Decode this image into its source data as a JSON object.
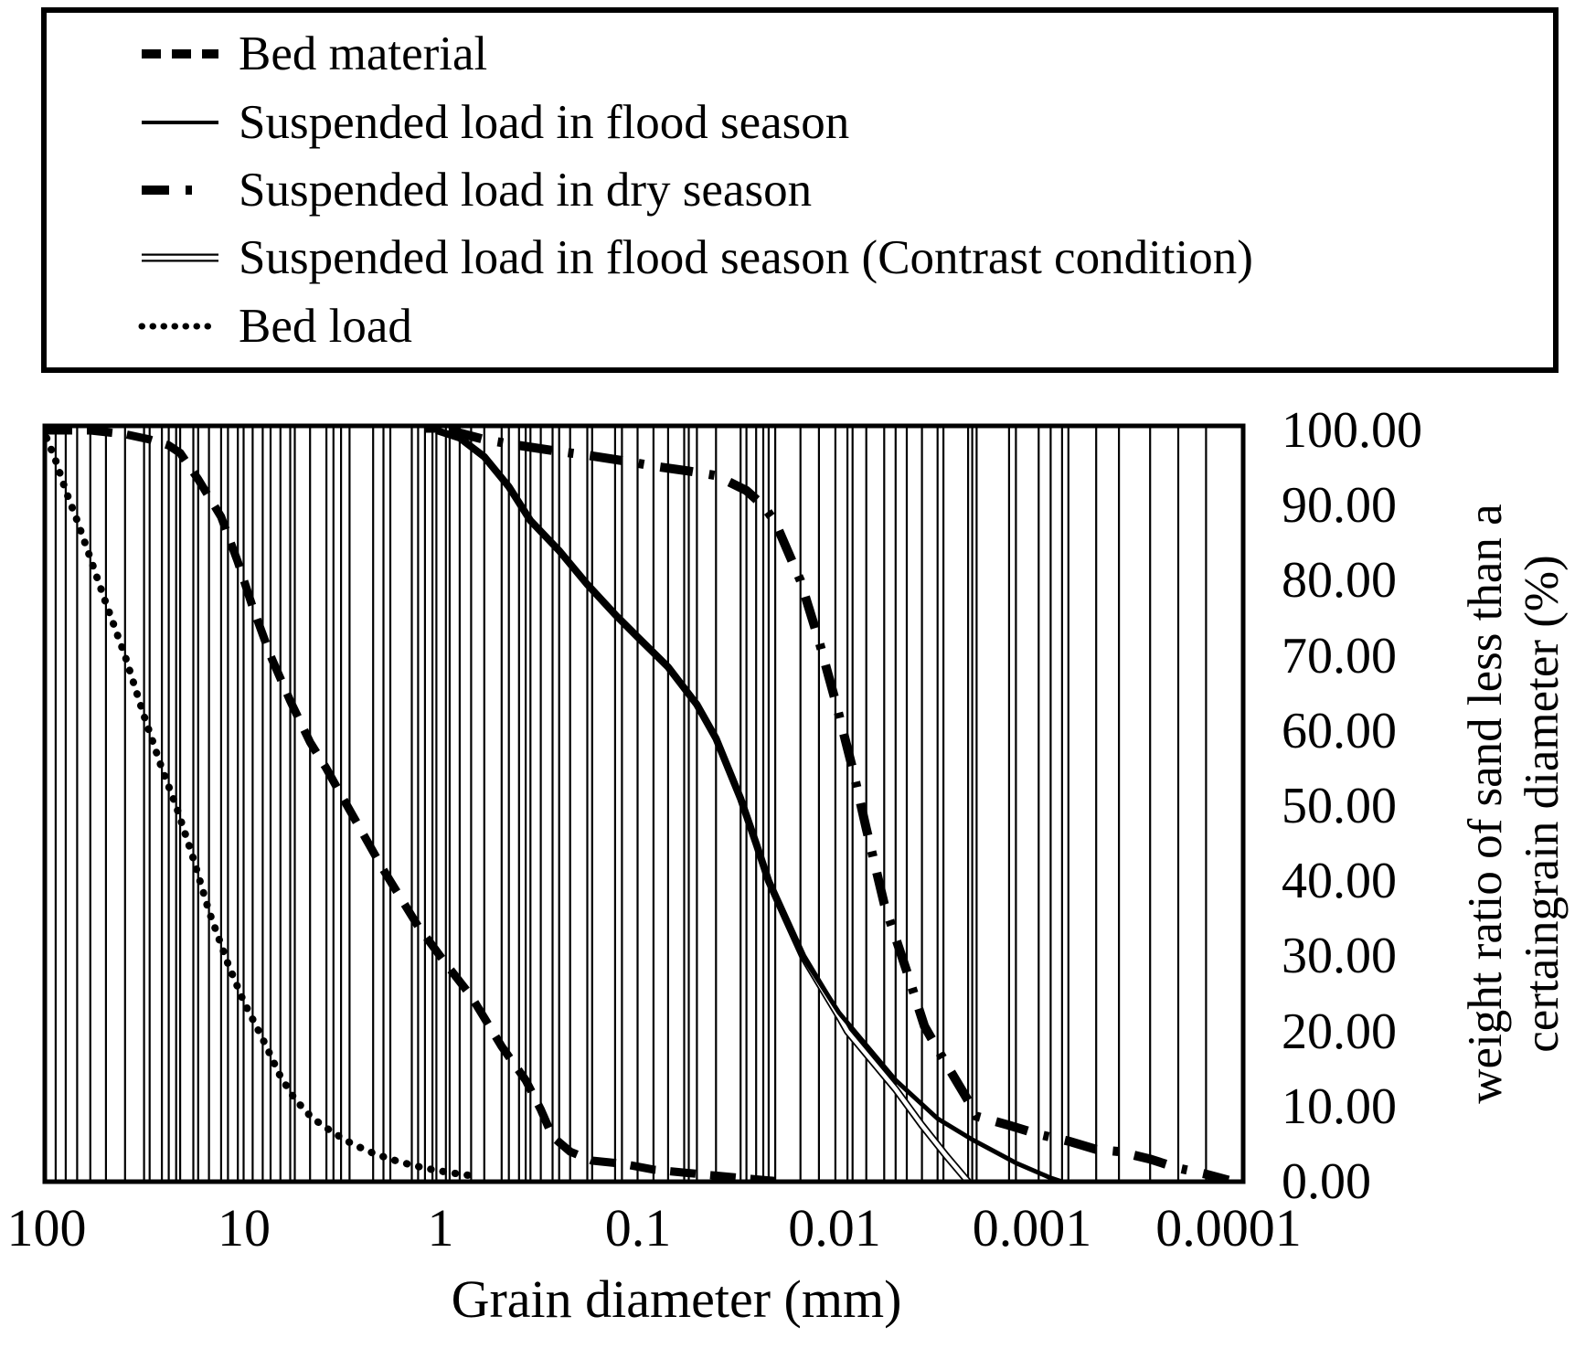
{
  "figure": {
    "background": "#ffffff",
    "foreground": "#000000"
  },
  "legend": {
    "items": [
      {
        "id": "bed-material",
        "label": "Bed material",
        "line_style": "dashed"
      },
      {
        "id": "suspended-flood",
        "label": "Suspended load in flood season",
        "line_style": "solid"
      },
      {
        "id": "suspended-dry",
        "label": "Suspended load in dry season",
        "line_style": "dash-dot"
      },
      {
        "id": "suspended-flood-contrast",
        "label": "Suspended load in flood season (Contrast condition)",
        "line_style": "double-solid"
      },
      {
        "id": "bed-load",
        "label": "Bed load",
        "line_style": "dotted"
      }
    ]
  },
  "chart_data": {
    "type": "line",
    "title": "",
    "x_axis": {
      "label": "Grain diameter (mm)",
      "scale": "log",
      "direction": "decreasing-left-to-right",
      "tick_labels": [
        "100",
        "10",
        "1",
        "0.1",
        "0.01",
        "0.001",
        "0.0001"
      ],
      "range_mm": [
        100,
        0.0001
      ]
    },
    "y_axis": {
      "label_line1": "weight ratio of sand less than a",
      "label_line2": "certaingrain diameter (%)",
      "tick_labels": [
        "100.00",
        "90.00",
        "80.00",
        "70.00",
        "60.00",
        "50.00",
        "40.00",
        "30.00",
        "20.00",
        "10.00",
        "0.00"
      ],
      "min": 0,
      "max": 100,
      "tick_step": 10,
      "labels_position": "right"
    },
    "gridlines": "vertical category gridline at every data-point diameter; no horizontal gridlines",
    "series": [
      {
        "id": "bed-material",
        "name": "Bed material",
        "style": "dashed",
        "points": [
          [
            100,
            100
          ],
          [
            60,
            100
          ],
          [
            40,
            99.5
          ],
          [
            30,
            98.8
          ],
          [
            24,
            98
          ],
          [
            21,
            97
          ],
          [
            17,
            93.5
          ],
          [
            13,
            88.5
          ],
          [
            10.7,
            82.5
          ],
          [
            9,
            76.5
          ],
          [
            7.3,
            70
          ],
          [
            5.8,
            64
          ],
          [
            4.6,
            58.5
          ],
          [
            3.8,
            55
          ],
          [
            3.2,
            51.5
          ],
          [
            2.9,
            49.5
          ],
          [
            1.95,
            41.5
          ],
          [
            1.3,
            34
          ],
          [
            0.94,
            29
          ],
          [
            0.7,
            24.7
          ],
          [
            0.49,
            18
          ],
          [
            0.37,
            13.5
          ],
          [
            0.31,
            9.6
          ],
          [
            0.27,
            6
          ],
          [
            0.22,
            4
          ],
          [
            0.17,
            2.8
          ],
          [
            0.12,
            2.4
          ],
          [
            0.083,
            1.6
          ],
          [
            0.058,
            1.2
          ],
          [
            0.04,
            0.8
          ],
          [
            0.025,
            0.3
          ],
          [
            0.02,
            0.1
          ]
        ]
      },
      {
        "id": "suspended-flood",
        "name": "Suspended load in flood season",
        "style": "solid",
        "points": [
          [
            1.2,
            100
          ],
          [
            1.05,
            100
          ],
          [
            0.8,
            99
          ],
          [
            0.6,
            96.5
          ],
          [
            0.45,
            92.5
          ],
          [
            0.35,
            88
          ],
          [
            0.25,
            84
          ],
          [
            0.18,
            79.5
          ],
          [
            0.13,
            75.5
          ],
          [
            0.1,
            72.5
          ],
          [
            0.07,
            68.5
          ],
          [
            0.05,
            63.5
          ],
          [
            0.04,
            59
          ],
          [
            0.03,
            51
          ],
          [
            0.025,
            45
          ],
          [
            0.0216,
            40
          ],
          [
            0.0145,
            30
          ],
          [
            0.0095,
            22.5
          ],
          [
            0.0049,
            13.5
          ],
          [
            0.003,
            8.4
          ],
          [
            0.002,
            5.6
          ],
          [
            0.0012,
            2.5
          ],
          [
            0.0008,
            0.5
          ],
          [
            0.0007,
            0
          ]
        ]
      },
      {
        "id": "suspended-dry",
        "name": "Suspended load in dry season",
        "style": "dash-dot",
        "points": [
          [
            0.9,
            100
          ],
          [
            0.6,
            98.8
          ],
          [
            0.4,
            98
          ],
          [
            0.25,
            97.2
          ],
          [
            0.17,
            96.6
          ],
          [
            0.12,
            96
          ],
          [
            0.08,
            95.2
          ],
          [
            0.055,
            94.6
          ],
          [
            0.04,
            94
          ],
          [
            0.028,
            92
          ],
          [
            0.023,
            90
          ],
          [
            0.02,
            87.8
          ],
          [
            0.0149,
            80
          ],
          [
            0.012,
            72
          ],
          [
            0.0099,
            64
          ],
          [
            0.0081,
            55
          ],
          [
            0.0069,
            47
          ],
          [
            0.0056,
            37
          ],
          [
            0.0043,
            28
          ],
          [
            0.0035,
            20.7
          ],
          [
            0.0028,
            16.3
          ],
          [
            0.0021,
            10.8
          ],
          [
            0.0019,
            8.7
          ],
          [
            0.0013,
            7.5
          ],
          [
            0.00092,
            6.3
          ],
          [
            0.00065,
            5.4
          ],
          [
            0.00047,
            4.3
          ],
          [
            0.00036,
            4
          ],
          [
            0.00025,
            3
          ],
          [
            0.00018,
            1.8
          ],
          [
            0.00013,
            1
          ],
          [
            0.0001,
            0.2
          ]
        ]
      },
      {
        "id": "suspended-flood-contrast",
        "name": "Suspended load in flood season (Contrast condition)",
        "style": "double-solid",
        "points": [
          [
            1.05,
            100
          ],
          [
            0.8,
            99
          ],
          [
            0.6,
            96.5
          ],
          [
            0.45,
            92.5
          ],
          [
            0.35,
            88
          ],
          [
            0.25,
            84
          ],
          [
            0.18,
            79.5
          ],
          [
            0.13,
            75.5
          ],
          [
            0.1,
            72.5
          ],
          [
            0.07,
            68.5
          ],
          [
            0.05,
            63.5
          ],
          [
            0.04,
            59
          ],
          [
            0.03,
            51
          ],
          [
            0.025,
            45
          ],
          [
            0.0216,
            40
          ],
          [
            0.0145,
            30
          ],
          [
            0.0095,
            22
          ],
          [
            0.0086,
            20
          ],
          [
            0.0049,
            12.3
          ],
          [
            0.0036,
            7.5
          ],
          [
            0.0027,
            3.4
          ],
          [
            0.0021,
            0
          ]
        ]
      },
      {
        "id": "bed-load",
        "name": "Bed load",
        "style": "dotted",
        "points": [
          [
            100,
            99
          ],
          [
            90,
            96
          ],
          [
            80,
            92
          ],
          [
            70,
            88
          ],
          [
            60,
            83
          ],
          [
            50,
            77
          ],
          [
            40,
            70
          ],
          [
            32,
            62
          ],
          [
            26,
            55
          ],
          [
            22,
            50
          ],
          [
            18,
            43
          ],
          [
            15,
            36
          ],
          [
            12,
            29
          ],
          [
            10,
            24
          ],
          [
            8,
            19
          ],
          [
            6.5,
            14
          ],
          [
            5.5,
            11
          ],
          [
            4.5,
            8.5
          ],
          [
            3.5,
            6.5
          ],
          [
            2.8,
            5
          ],
          [
            2.2,
            3.8
          ],
          [
            1.8,
            3
          ],
          [
            1.4,
            2.2
          ],
          [
            1.1,
            1.6
          ],
          [
            0.9,
            1.2
          ],
          [
            0.7,
            0.8
          ]
        ]
      }
    ]
  }
}
